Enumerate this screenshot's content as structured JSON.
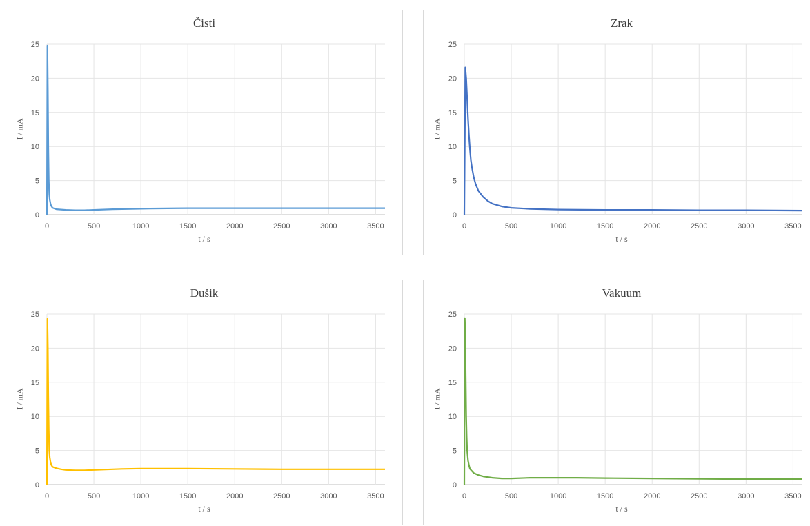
{
  "chart_data": [
    {
      "type": "line",
      "title": "Čisti",
      "xlabel": "t / s",
      "ylabel": "I / mA",
      "xlim": [
        0,
        3600
      ],
      "ylim": [
        0,
        25
      ],
      "xticks": [
        "0",
        "500",
        "1000",
        "1500",
        "2000",
        "2500",
        "3000",
        "3500"
      ],
      "yticks": [
        "0",
        "5",
        "10",
        "15",
        "20",
        "25"
      ],
      "grid": true,
      "color": "#5b9bd5",
      "x": [
        0,
        5,
        10,
        15,
        20,
        25,
        30,
        40,
        50,
        60,
        80,
        100,
        150,
        200,
        300,
        400,
        500,
        700,
        900,
        1100,
        1500,
        2000,
        2500,
        3000,
        3600
      ],
      "y": [
        0,
        24.8,
        18,
        10,
        5,
        3,
        2.2,
        1.5,
        1.2,
        1.0,
        0.9,
        0.8,
        0.75,
        0.7,
        0.65,
        0.65,
        0.7,
        0.8,
        0.85,
        0.9,
        0.95,
        0.95,
        0.95,
        0.95,
        0.95
      ]
    },
    {
      "type": "line",
      "title": "Zrak",
      "xlabel": "t / s",
      "ylabel": "I / mA",
      "xlim": [
        0,
        3600
      ],
      "ylim": [
        0,
        25
      ],
      "xticks": [
        "0",
        "500",
        "1000",
        "1500",
        "2000",
        "2500",
        "3000",
        "3500"
      ],
      "yticks": [
        "0",
        "5",
        "10",
        "15",
        "20",
        "25"
      ],
      "grid": true,
      "color": "#4472c4",
      "x": [
        0,
        10,
        20,
        30,
        40,
        50,
        60,
        70,
        80,
        100,
        120,
        150,
        200,
        250,
        300,
        400,
        500,
        700,
        1000,
        1500,
        2000,
        2500,
        3000,
        3600
      ],
      "y": [
        0,
        21.6,
        20,
        17,
        14,
        11.5,
        9.5,
        8,
        7,
        5.5,
        4.5,
        3.5,
        2.6,
        2.0,
        1.6,
        1.2,
        1.0,
        0.85,
        0.75,
        0.7,
        0.7,
        0.65,
        0.65,
        0.6
      ]
    },
    {
      "type": "line",
      "title": "Dušik",
      "xlabel": "t / s",
      "ylabel": "I / mA",
      "xlim": [
        0,
        3600
      ],
      "ylim": [
        0,
        25
      ],
      "xticks": [
        "0",
        "500",
        "1000",
        "1500",
        "2000",
        "2500",
        "3000",
        "3500"
      ],
      "yticks": [
        "0",
        "5",
        "10",
        "15",
        "20",
        "25"
      ],
      "grid": true,
      "color": "#ffc000",
      "x": [
        0,
        5,
        10,
        15,
        20,
        25,
        30,
        40,
        50,
        60,
        80,
        100,
        150,
        200,
        300,
        400,
        500,
        600,
        800,
        1000,
        1500,
        2000,
        2500,
        3000,
        3600
      ],
      "y": [
        0,
        24.3,
        20,
        13,
        8,
        5,
        4,
        3.2,
        2.8,
        2.6,
        2.5,
        2.4,
        2.25,
        2.15,
        2.1,
        2.1,
        2.15,
        2.2,
        2.3,
        2.35,
        2.35,
        2.3,
        2.25,
        2.25,
        2.25
      ]
    },
    {
      "type": "line",
      "title": "Vakuum",
      "xlabel": "t / s",
      "ylabel": "I / mA",
      "xlim": [
        0,
        3600
      ],
      "ylim": [
        0,
        25
      ],
      "xticks": [
        "0",
        "500",
        "1000",
        "1500",
        "2000",
        "2500",
        "3000",
        "3500"
      ],
      "yticks": [
        "0",
        "5",
        "10",
        "15",
        "20",
        "25"
      ],
      "grid": true,
      "color": "#70ad47",
      "x": [
        0,
        5,
        10,
        15,
        20,
        25,
        30,
        40,
        50,
        60,
        80,
        100,
        150,
        200,
        300,
        400,
        500,
        700,
        900,
        1200,
        1500,
        2000,
        2500,
        3000,
        3600
      ],
      "y": [
        0,
        24.4,
        22,
        16,
        10,
        7,
        5,
        3.5,
        2.8,
        2.3,
        2.0,
        1.7,
        1.4,
        1.2,
        1.0,
        0.9,
        0.9,
        1.0,
        1.0,
        1.0,
        0.95,
        0.9,
        0.85,
        0.8,
        0.8
      ]
    }
  ]
}
